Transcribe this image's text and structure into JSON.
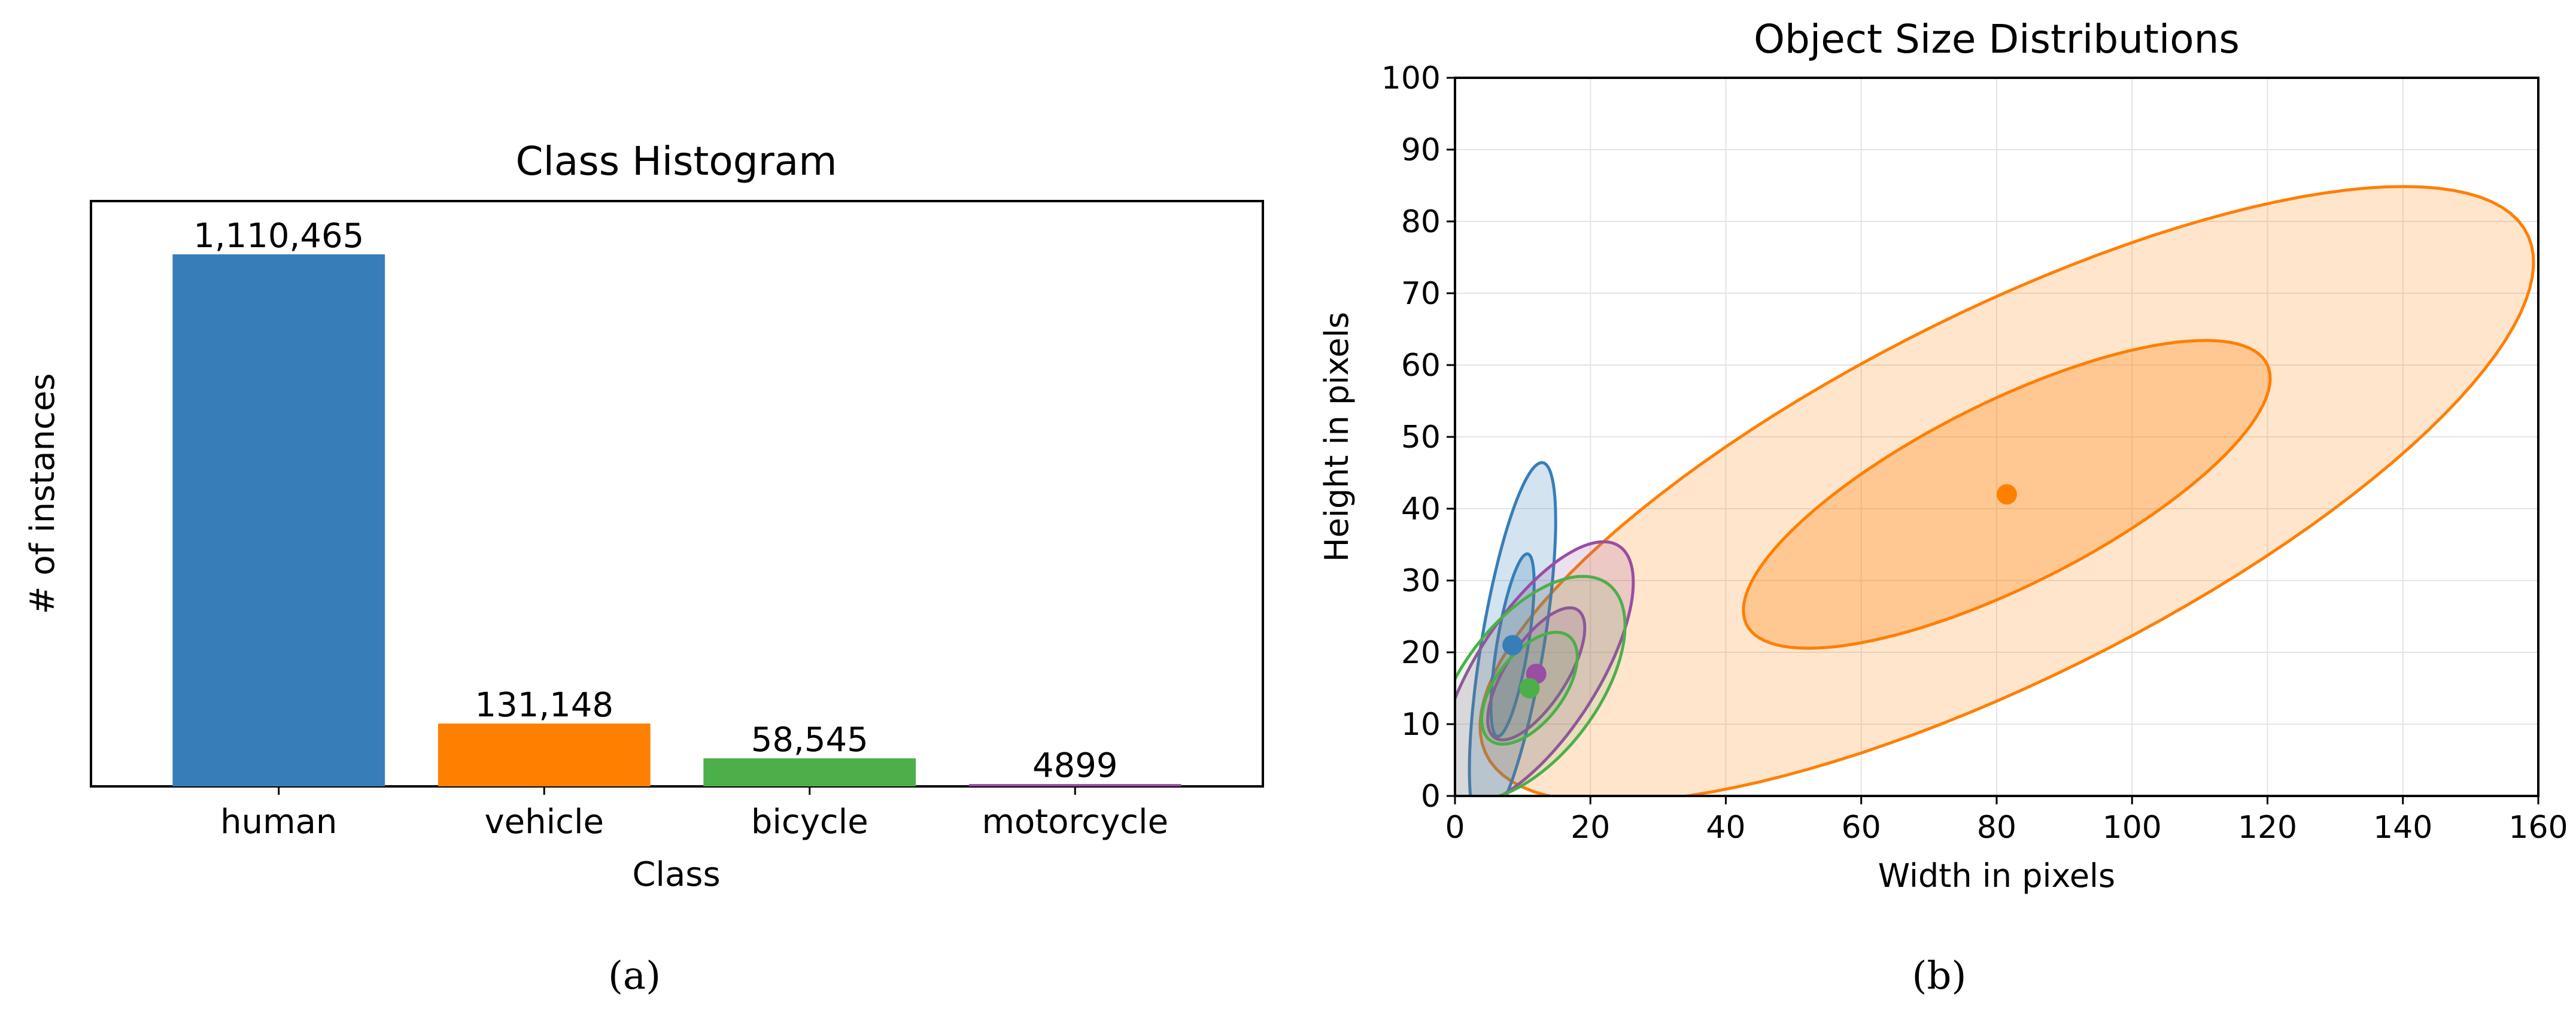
{
  "chart_data": [
    {
      "type": "bar",
      "title": "Class Histogram",
      "xlabel": "Class",
      "ylabel": "# of instances",
      "categories": [
        "human",
        "vehicle",
        "bicycle",
        "motorcycle"
      ],
      "values": [
        1110465,
        131148,
        58545,
        4899
      ],
      "value_labels": [
        "1,110,465",
        "131,148",
        "58,545",
        "4899"
      ],
      "colors": [
        "#377eb8",
        "#ff7f00",
        "#4daf4a",
        "#984ea3"
      ],
      "ylim": [
        0,
        1110465
      ],
      "y_ticks_shown": false,
      "grid": false,
      "caption": "(a)"
    },
    {
      "type": "scatter",
      "title": "Object Size Distributions",
      "xlabel": "Width in pixels",
      "ylabel": "Height in pixels",
      "xlim": [
        0,
        160
      ],
      "ylim": [
        0,
        100
      ],
      "xticks": [
        0,
        20,
        40,
        60,
        80,
        100,
        120,
        140,
        160
      ],
      "yticks": [
        0,
        10,
        20,
        30,
        40,
        50,
        60,
        70,
        80,
        90,
        100
      ],
      "grid": true,
      "caption": "(b)",
      "series": [
        {
          "name": "vehicle",
          "color": "#ff7f00",
          "mean": [
            81.5,
            42
          ],
          "ellipses": [
            {
              "angle": 25,
              "rx": 42.5,
              "ry": 12.9,
              "fill_opacity": 0.28
            },
            {
              "angle": 25,
              "rx": 85,
              "ry": 25.8,
              "fill_opacity": 0.2
            }
          ]
        },
        {
          "name": "human",
          "color": "#377eb8",
          "mean": [
            8.5,
            21
          ],
          "ellipses": [
            {
              "angle": 80,
              "rx": 12.9,
              "ry": 2.3,
              "fill_opacity": 0.22
            },
            {
              "angle": 80,
              "rx": 25.8,
              "ry": 4.6,
              "fill_opacity": 0.22
            }
          ]
        },
        {
          "name": "motorcycle",
          "color": "#984ea3",
          "mean": [
            12,
            17
          ],
          "ellipses": [
            {
              "angle": 55,
              "rx": 10.8,
              "ry": 4.4,
              "fill_opacity": 0.18
            },
            {
              "angle": 55,
              "rx": 21.6,
              "ry": 8.8,
              "fill_opacity": 0.18
            }
          ]
        },
        {
          "name": "bicycle",
          "color": "#4daf4a",
          "mean": [
            11,
            15
          ],
          "ellipses": [
            {
              "angle": 50,
              "rx": 9.3,
              "ry": 4.9,
              "fill_opacity": 0.12
            },
            {
              "angle": 50,
              "rx": 18.6,
              "ry": 9.8,
              "fill_opacity": 0.12
            }
          ]
        }
      ]
    }
  ]
}
